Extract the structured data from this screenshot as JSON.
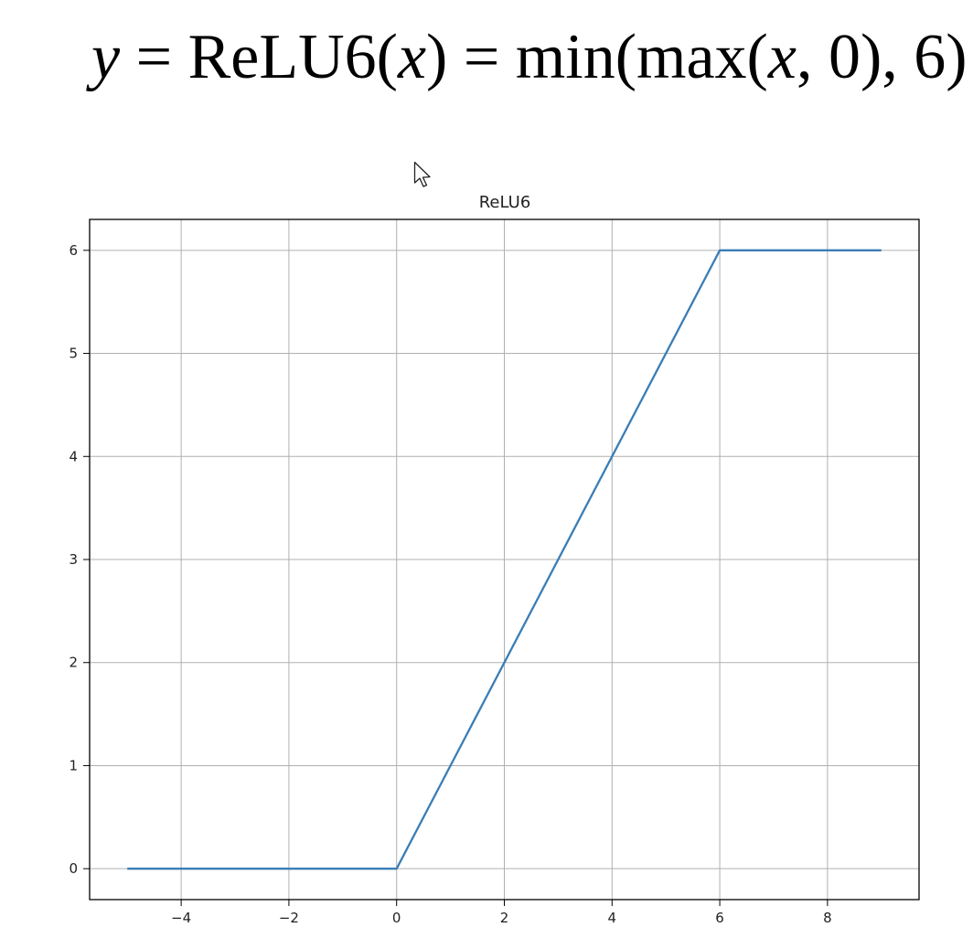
{
  "formula": {
    "y": "y",
    "eq1": "=",
    "relu_call": "ReLU6(",
    "x1": "x",
    "close1": ")",
    "eq2": "=",
    "min_max": "min(max(",
    "x2": "x",
    "rest": ", 0), 6)"
  },
  "chart_data": {
    "type": "line",
    "title": "ReLU6",
    "xlabel": "",
    "ylabel": "",
    "xlim": [
      -5.7,
      9.7
    ],
    "ylim": [
      -0.3,
      6.3
    ],
    "xticks": [
      -4,
      -2,
      0,
      2,
      4,
      6,
      8
    ],
    "xtick_labels": [
      "−4",
      "−2",
      "0",
      "2",
      "4",
      "6",
      "8"
    ],
    "yticks": [
      0,
      1,
      2,
      3,
      4,
      5,
      6
    ],
    "ytick_labels": [
      "0",
      "1",
      "2",
      "3",
      "4",
      "5",
      "6"
    ],
    "grid": true,
    "series": [
      {
        "color": "#3a7db5",
        "x": [
          -5,
          0,
          6,
          9
        ],
        "y": [
          0,
          0,
          6,
          6
        ]
      }
    ]
  },
  "cursor_icon": "arrow-cursor-icon"
}
